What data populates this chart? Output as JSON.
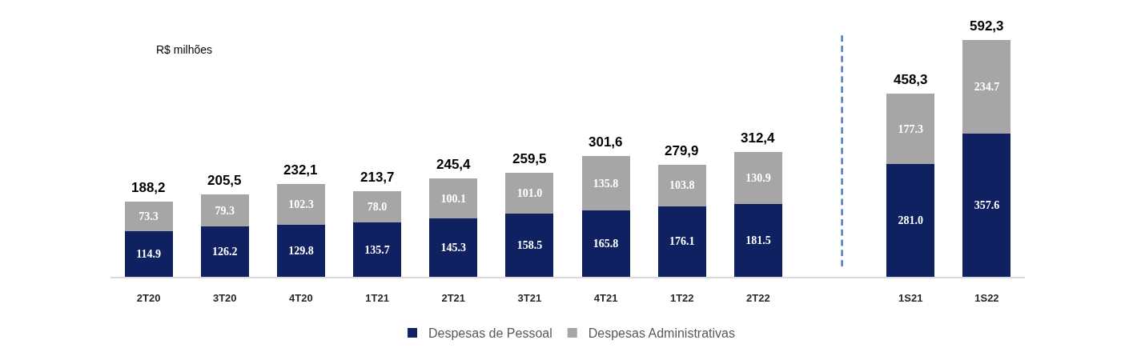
{
  "chart_data": {
    "type": "bar",
    "stacked": true,
    "categories": [
      "2T20",
      "3T20",
      "4T20",
      "1T21",
      "2T21",
      "3T21",
      "4T21",
      "1T22",
      "2T22",
      null,
      "1S21",
      "1S22"
    ],
    "series": [
      {
        "name": "Despesas de Pessoal",
        "color": "#0f2160",
        "values": [
          114.9,
          126.2,
          129.8,
          135.7,
          145.3,
          158.5,
          165.8,
          176.1,
          181.5,
          null,
          281.0,
          357.6
        ],
        "value_labels": [
          "114.9",
          "126.2",
          "129.8",
          "135.7",
          "145.3",
          "158.5",
          "165.8",
          "176.1",
          "181.5",
          null,
          "281.0",
          "357.6"
        ]
      },
      {
        "name": "Despesas Administrativas",
        "color": "#a6a6a6",
        "values": [
          73.3,
          79.3,
          102.3,
          78.0,
          100.1,
          101.0,
          135.8,
          103.8,
          130.9,
          null,
          177.3,
          234.7
        ],
        "value_labels": [
          "73.3",
          "79.3",
          "102.3",
          "78.0",
          "100.1",
          "101.0",
          "135.8",
          "103.8",
          "130.9",
          null,
          "177.3",
          "234.7"
        ]
      }
    ],
    "totals": [
      "188,2",
      "205,5",
      "232,1",
      "213,7",
      "245,4",
      "259,5",
      "301,6",
      "279,9",
      "312,4",
      null,
      "458,3",
      "592,3"
    ],
    "annotations": [
      "R$ milhões"
    ],
    "legend": "bottom",
    "tick_labels": "x"
  }
}
